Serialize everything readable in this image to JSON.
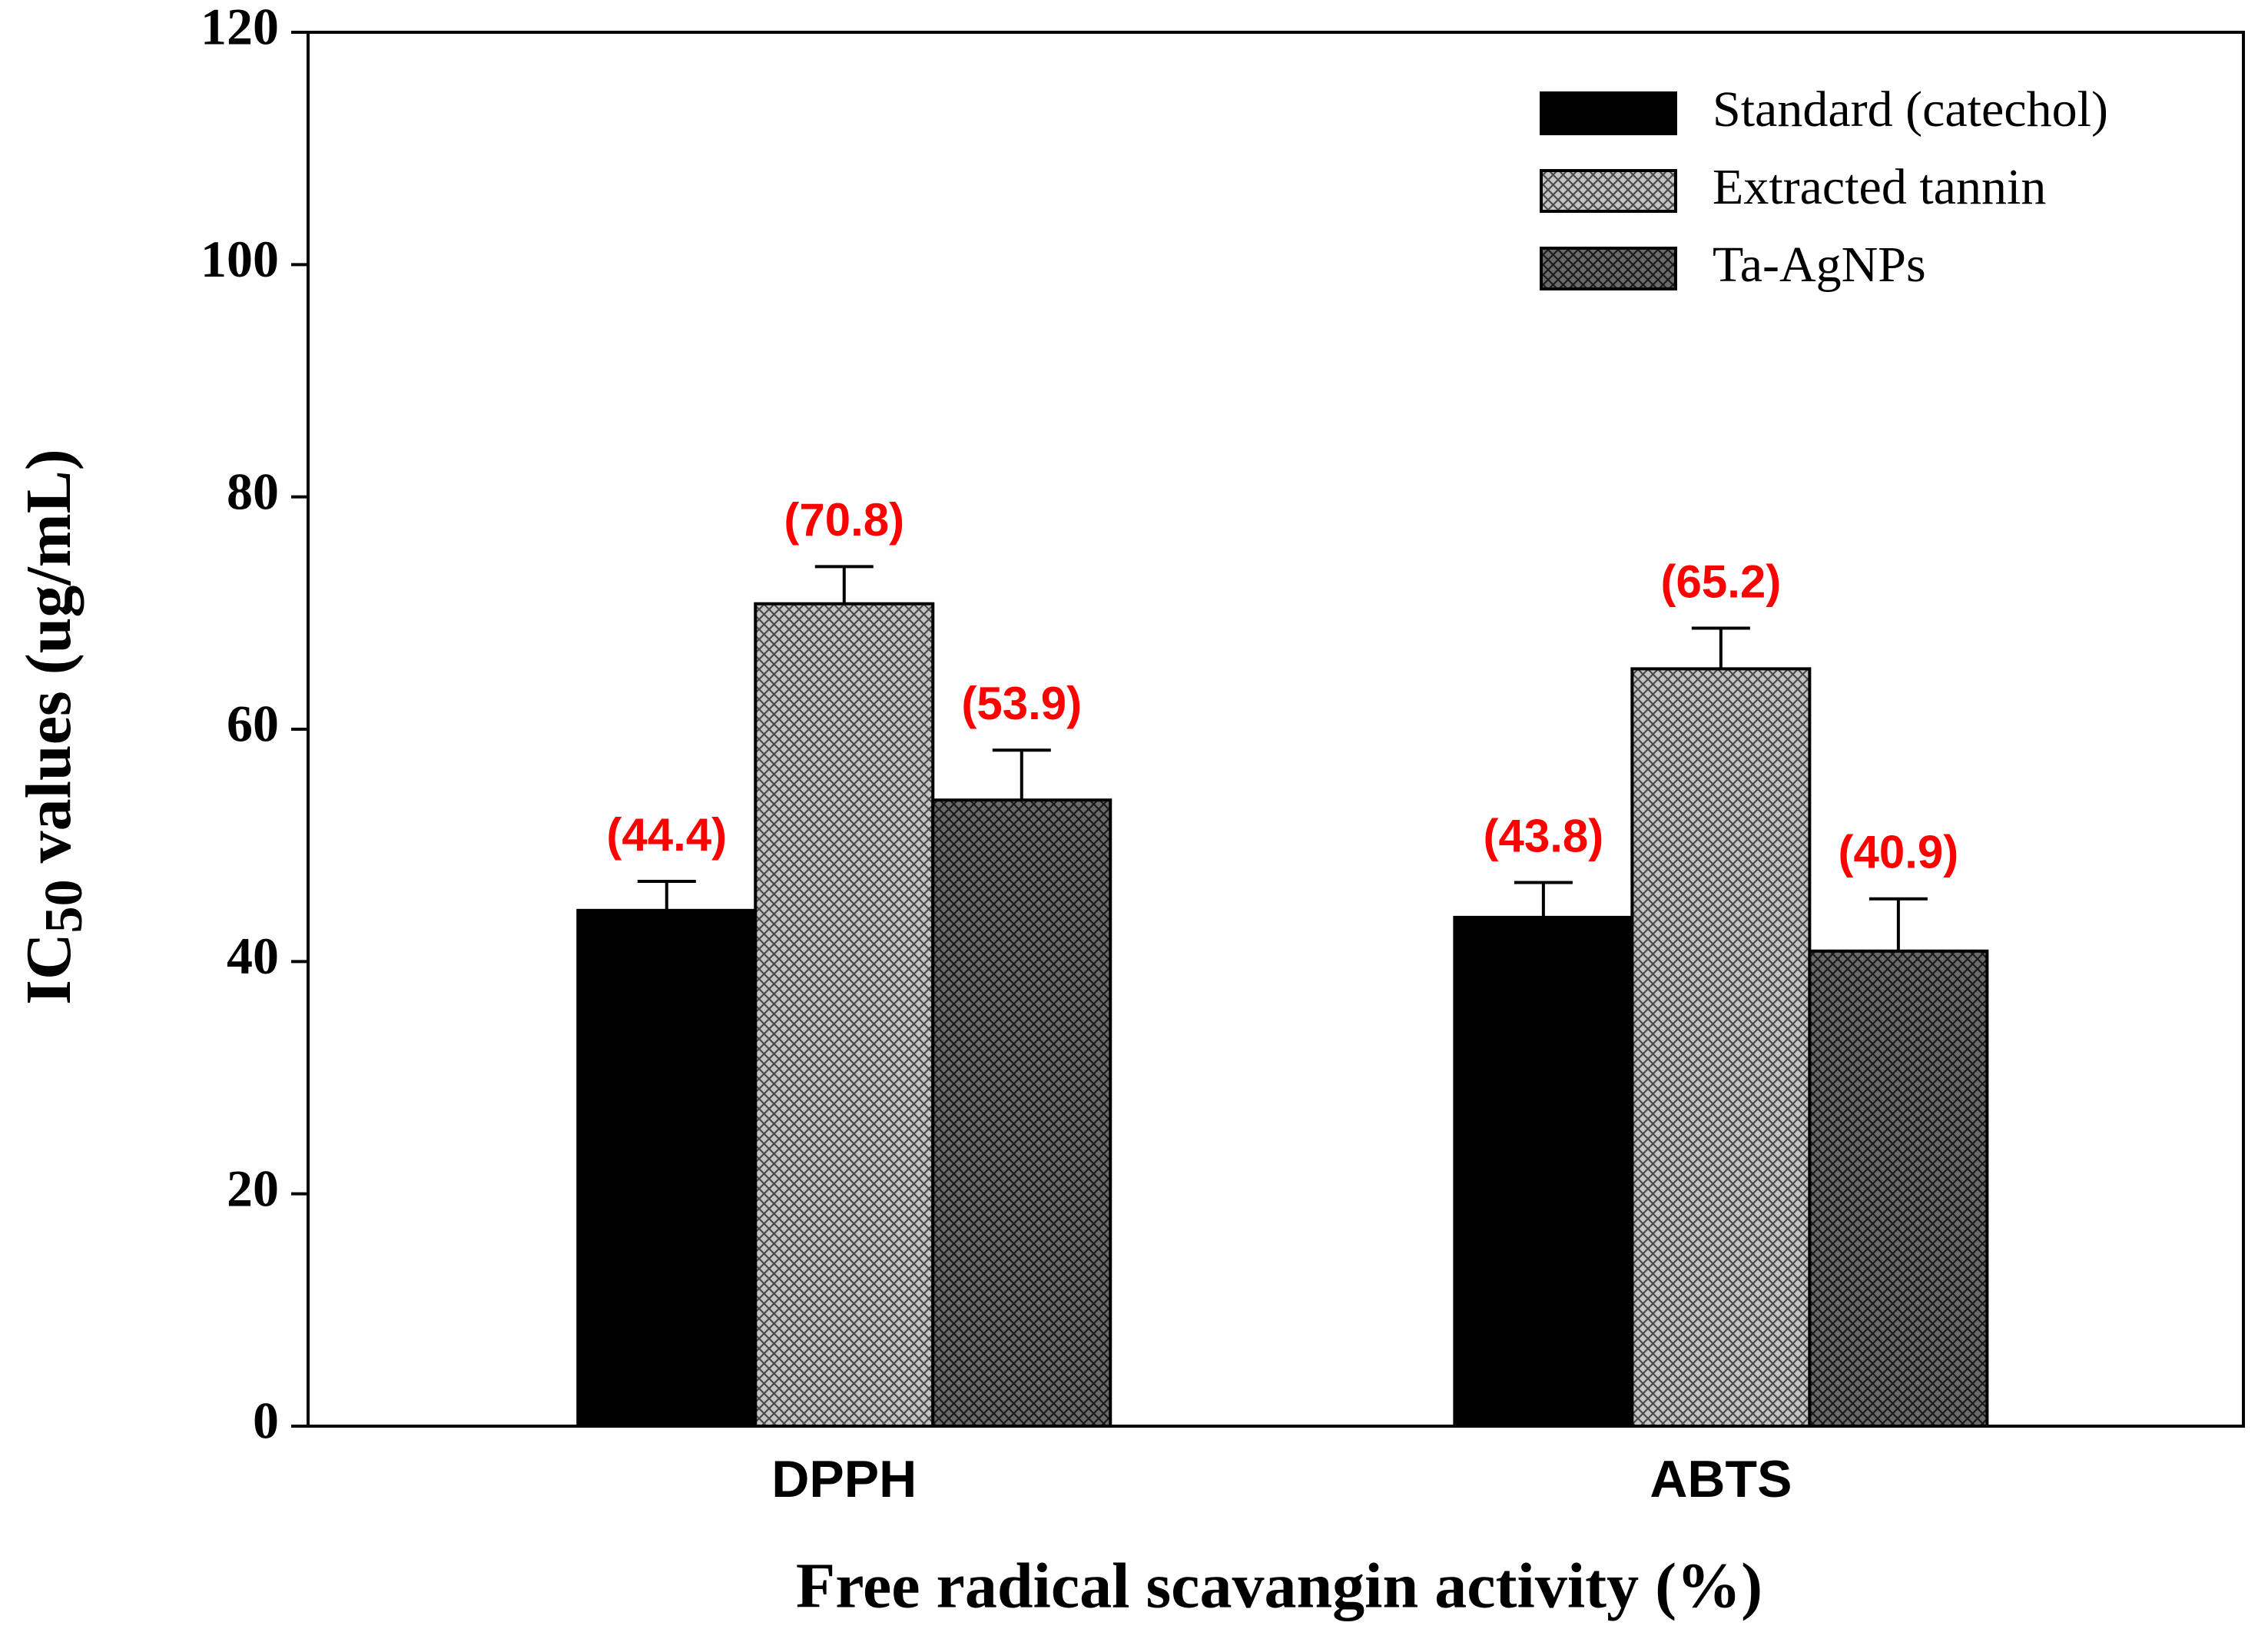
{
  "chart_data": {
    "type": "bar",
    "categories": [
      "DPPH",
      "ABTS"
    ],
    "series": [
      {
        "name": "Standard (catechol)",
        "color": "#000000",
        "hatch": "none",
        "values": [
          44.4,
          43.8
        ],
        "errors": [
          2.5,
          3.0
        ],
        "value_labels": [
          "(44.4)",
          "(43.8)"
        ]
      },
      {
        "name": "Extracted tannin",
        "color": "#c4c4c4",
        "hatch": "cross",
        "values": [
          70.8,
          65.2
        ],
        "errors": [
          3.2,
          3.5
        ],
        "value_labels": [
          "(70.8)",
          "(65.2)"
        ]
      },
      {
        "name": "Ta-AgNPs",
        "color": "#6a6a6a",
        "hatch": "cross",
        "values": [
          53.9,
          40.9
        ],
        "errors": [
          4.3,
          4.5
        ],
        "value_labels": [
          "(53.9)",
          "(40.9)"
        ]
      }
    ],
    "xlabel": "Free radical scavangin activity (%)",
    "ylabel": [
      "IC",
      "50",
      " values (ug/mL)"
    ],
    "ylim": [
      0,
      120
    ],
    "yticks": [
      0,
      20,
      40,
      60,
      80,
      100,
      120
    ],
    "legend": "upper-right"
  }
}
